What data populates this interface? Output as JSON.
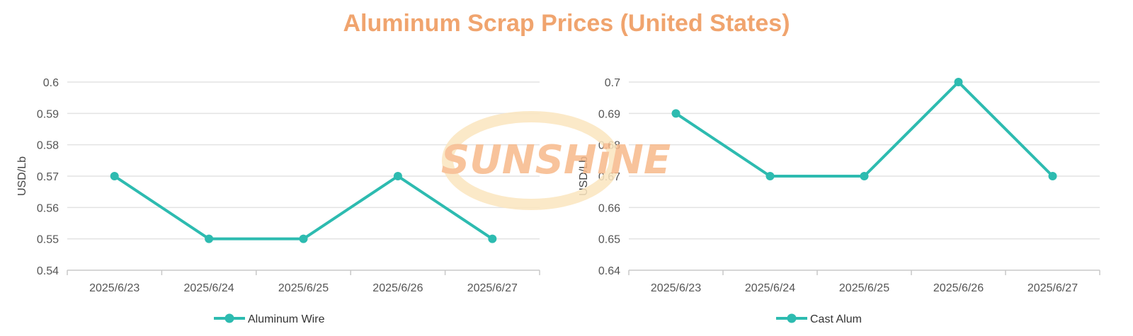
{
  "title": "Aluminum Scrap Prices (United States)",
  "watermark": {
    "text": "SUNSHiNE",
    "color": "#f7b98a",
    "swoosh_color": "#fbe6bf"
  },
  "colors": {
    "series": "#2dbbb0",
    "grid": "#e3e3e3",
    "axis": "#c8c8c8",
    "title": "#f0a46e"
  },
  "chart_data": [
    {
      "type": "line",
      "ylabel": "USD/Lb",
      "ylim": [
        0.54,
        0.6
      ],
      "yticks": [
        "0.54",
        "0.55",
        "0.56",
        "0.57",
        "0.58",
        "0.59",
        "0.6"
      ],
      "categories": [
        "2025/6/23",
        "2025/6/24",
        "2025/6/25",
        "2025/6/26",
        "2025/6/27"
      ],
      "series": [
        {
          "name": "Aluminum Wire",
          "values": [
            0.57,
            0.55,
            0.55,
            0.57,
            0.55
          ]
        }
      ],
      "legend": "bottom-center",
      "grid": true
    },
    {
      "type": "line",
      "ylabel": "USD/Lb",
      "ylim": [
        0.64,
        0.7
      ],
      "yticks": [
        "0.64",
        "0.65",
        "0.66",
        "0.67",
        "0.68",
        "0.69",
        "0.7"
      ],
      "categories": [
        "2025/6/23",
        "2025/6/24",
        "2025/6/25",
        "2025/6/26",
        "2025/6/27"
      ],
      "series": [
        {
          "name": "Cast Alum",
          "values": [
            0.69,
            0.67,
            0.67,
            0.7,
            0.67
          ]
        }
      ],
      "legend": "bottom-center",
      "grid": true
    }
  ]
}
